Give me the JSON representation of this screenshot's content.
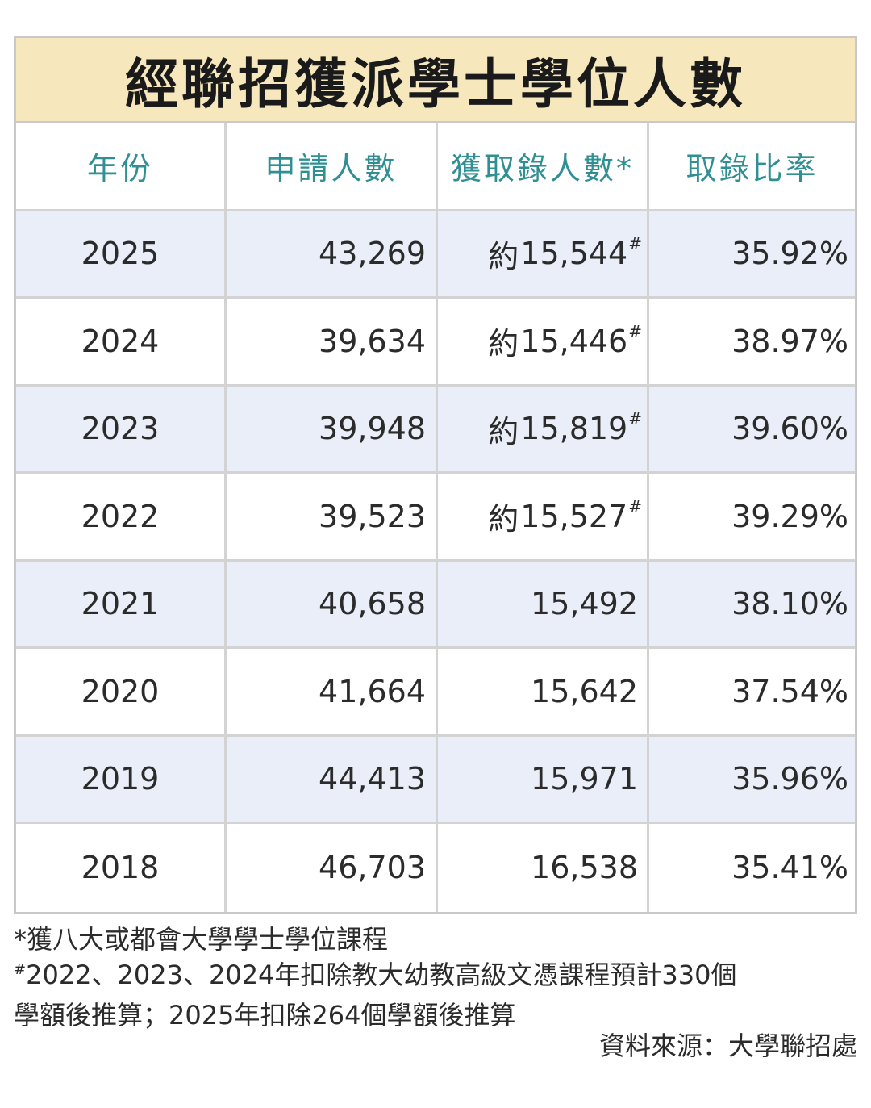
{
  "title": "經聯招獲派學士學位人數",
  "headers": {
    "year": "年份",
    "applicants": "申請人數",
    "admitted": "獲取錄人數*",
    "rate": "取錄比率"
  },
  "rows": [
    {
      "year": "2025",
      "applicants": "43,269",
      "admitted_prefix": "約",
      "admitted": "15,544",
      "admitted_mark": "#",
      "rate": "35.92%"
    },
    {
      "year": "2024",
      "applicants": "39,634",
      "admitted_prefix": "約",
      "admitted": "15,446",
      "admitted_mark": "#",
      "rate": "38.97%"
    },
    {
      "year": "2023",
      "applicants": "39,948",
      "admitted_prefix": "約",
      "admitted": "15,819",
      "admitted_mark": "#",
      "rate": "39.60%"
    },
    {
      "year": "2022",
      "applicants": "39,523",
      "admitted_prefix": "約",
      "admitted": "15,527",
      "admitted_mark": "#",
      "rate": "39.29%"
    },
    {
      "year": "2021",
      "applicants": "40,658",
      "admitted_prefix": "",
      "admitted": "15,492",
      "admitted_mark": "",
      "rate": "38.10%"
    },
    {
      "year": "2020",
      "applicants": "41,664",
      "admitted_prefix": "",
      "admitted": "15,642",
      "admitted_mark": "",
      "rate": "37.54%"
    },
    {
      "year": "2019",
      "applicants": "44,413",
      "admitted_prefix": "",
      "admitted": "15,971",
      "admitted_mark": "",
      "rate": "35.96%"
    },
    {
      "year": "2018",
      "applicants": "46,703",
      "admitted_prefix": "",
      "admitted": "16,538",
      "admitted_mark": "",
      "rate": "35.41%"
    }
  ],
  "notes": {
    "note1": "*獲八大或都會大學學士學位課程",
    "note2_mark": "#",
    "note2": "2022、2023、2024年扣除教大幼教高級文憑課程預計330個",
    "note3": "學額後推算；2025年扣除264個學額後推算"
  },
  "source": "資料來源：大學聯招處",
  "colors": {
    "title_bg": "#f6e7bd",
    "header_text": "#2f8f93",
    "row_shade": "#e9eef8",
    "border": "#d3d3d3"
  }
}
